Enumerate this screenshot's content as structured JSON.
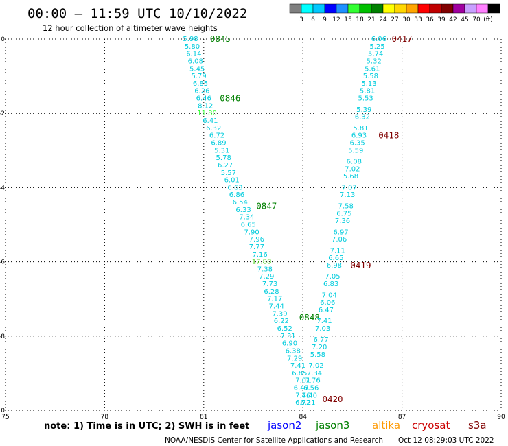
{
  "header": {
    "title": "00:00 – 11:59 UTC 10/10/2022",
    "subtitle": "12 hour collection of altimeter wave heights"
  },
  "colorbar": {
    "colors": [
      "#7f7f7f",
      "#00ffff",
      "#00c8ff",
      "#0000ff",
      "#1e90ff",
      "#33ff33",
      "#00c000",
      "#008000",
      "#ffff00",
      "#ffd700",
      "#ffa500",
      "#ff0000",
      "#c00000",
      "#800000",
      "#a000a0",
      "#c8a0ff",
      "#ff80ff",
      "#000000"
    ],
    "labels": [
      "3",
      "6",
      "9",
      "12",
      "15",
      "18",
      "21",
      "24",
      "27",
      "30",
      "33",
      "36",
      "39",
      "42",
      "45",
      "70",
      "(ft)"
    ]
  },
  "footer": {
    "note": "note: 1) Time is in UTC; 2) SWH is in feet",
    "sats": [
      {
        "name": "jason2",
        "color": "#0000ff"
      },
      {
        "name": "jason3",
        "color": "#008000"
      },
      {
        "name": "altika",
        "color": "#ff9900"
      },
      {
        "name": "cryosat",
        "color": "#cc0000"
      },
      {
        "name": "s3a",
        "color": "#800000"
      }
    ],
    "credit": "NOAA/NESDIS Center for Satellite Applications and Research",
    "timestamp": "Oct 12 08:29:03 UTC 2022"
  },
  "chart_data": {
    "type": "scatter",
    "xlim": [
      75,
      90
    ],
    "ylim": [
      -10,
      0
    ],
    "x_ticks": [
      75,
      78,
      81,
      84,
      87,
      90
    ],
    "y_ticks": [
      0,
      -2,
      -4,
      -6,
      -8,
      -10
    ],
    "grid": true,
    "series": [
      {
        "name": "jason3",
        "color": "#008000",
        "time_labels": [
          {
            "x": 81.5,
            "y": 0.0,
            "text": "0845"
          },
          {
            "x": 81.8,
            "y": -1.6,
            "text": "0846"
          },
          {
            "x": 82.9,
            "y": -4.5,
            "text": "0847"
          },
          {
            "x": 84.2,
            "y": -7.5,
            "text": "0848"
          }
        ],
        "points": [
          {
            "x": 80.6,
            "y": 0.0,
            "v": "5.98"
          },
          {
            "x": 80.65,
            "y": -0.2,
            "v": "5.80"
          },
          {
            "x": 80.7,
            "y": -0.4,
            "v": "6.14"
          },
          {
            "x": 80.75,
            "y": -0.6,
            "v": "6.08"
          },
          {
            "x": 80.8,
            "y": -0.8,
            "v": "5.45"
          },
          {
            "x": 80.85,
            "y": -1.0,
            "v": "5.79"
          },
          {
            "x": 80.9,
            "y": -1.2,
            "v": "6.85"
          },
          {
            "x": 80.95,
            "y": -1.4,
            "v": "6.26"
          },
          {
            "x": 81.0,
            "y": -1.6,
            "v": "6.46"
          },
          {
            "x": 81.05,
            "y": -1.8,
            "v": "8.12"
          },
          {
            "x": 81.1,
            "y": -2.0,
            "v": "11.80",
            "c": "#33ff33"
          },
          {
            "x": 81.2,
            "y": -2.2,
            "v": "6.41"
          },
          {
            "x": 81.3,
            "y": -2.4,
            "v": "6.32"
          },
          {
            "x": 81.4,
            "y": -2.6,
            "v": "6.72"
          },
          {
            "x": 81.45,
            "y": -2.8,
            "v": "6.89"
          },
          {
            "x": 81.55,
            "y": -3.0,
            "v": "5.31"
          },
          {
            "x": 81.6,
            "y": -3.2,
            "v": "5.78"
          },
          {
            "x": 81.65,
            "y": -3.4,
            "v": "6.27"
          },
          {
            "x": 81.75,
            "y": -3.6,
            "v": "5.57"
          },
          {
            "x": 81.85,
            "y": -3.8,
            "v": "6.01"
          },
          {
            "x": 81.95,
            "y": -4.0,
            "v": "6.63"
          },
          {
            "x": 82.0,
            "y": -4.2,
            "v": "6.86"
          },
          {
            "x": 82.1,
            "y": -4.4,
            "v": "6.54"
          },
          {
            "x": 82.2,
            "y": -4.6,
            "v": "6.33"
          },
          {
            "x": 82.3,
            "y": -4.8,
            "v": "7.34"
          },
          {
            "x": 82.35,
            "y": -5.0,
            "v": "6.65"
          },
          {
            "x": 82.45,
            "y": -5.2,
            "v": "7.90"
          },
          {
            "x": 82.6,
            "y": -5.4,
            "v": "7.96"
          },
          {
            "x": 82.6,
            "y": -5.6,
            "v": "7.77"
          },
          {
            "x": 82.7,
            "y": -5.8,
            "v": "7.16"
          },
          {
            "x": 82.75,
            "y": -6.0,
            "v": "17.88",
            "c": "#33cc00"
          },
          {
            "x": 82.85,
            "y": -6.2,
            "v": "7.38"
          },
          {
            "x": 82.9,
            "y": -6.4,
            "v": "7.29"
          },
          {
            "x": 83.0,
            "y": -6.6,
            "v": "7.73"
          },
          {
            "x": 83.05,
            "y": -6.8,
            "v": "6.28"
          },
          {
            "x": 83.15,
            "y": -7.0,
            "v": "7.17"
          },
          {
            "x": 83.2,
            "y": -7.2,
            "v": "7.44"
          },
          {
            "x": 83.3,
            "y": -7.4,
            "v": "7.39"
          },
          {
            "x": 83.35,
            "y": -7.6,
            "v": "6.22"
          },
          {
            "x": 83.45,
            "y": -7.8,
            "v": "6.52"
          },
          {
            "x": 83.55,
            "y": -8.0,
            "v": "7.31"
          },
          {
            "x": 83.6,
            "y": -8.2,
            "v": "6.90"
          },
          {
            "x": 83.7,
            "y": -8.4,
            "v": "6.38"
          },
          {
            "x": 83.75,
            "y": -8.6,
            "v": "7.29"
          },
          {
            "x": 83.85,
            "y": -8.8,
            "v": "7.41"
          },
          {
            "x": 83.9,
            "y": -9.0,
            "v": "6.85"
          },
          {
            "x": 84.0,
            "y": -9.2,
            "v": "7.01"
          },
          {
            "x": 83.95,
            "y": -9.4,
            "v": "6.47"
          },
          {
            "x": 84.0,
            "y": -9.6,
            "v": "7.46"
          },
          {
            "x": 84.0,
            "y": -9.8,
            "v": "6.72"
          }
        ]
      },
      {
        "name": "s3a",
        "color": "#800000",
        "time_labels": [
          {
            "x": 87.0,
            "y": 0.0,
            "text": "0417"
          },
          {
            "x": 86.6,
            "y": -2.6,
            "text": "0418"
          },
          {
            "x": 85.75,
            "y": -6.1,
            "text": "0419"
          },
          {
            "x": 84.9,
            "y": -9.7,
            "text": "0420"
          }
        ],
        "points": [
          {
            "x": 86.3,
            "y": 0.0,
            "v": "6.06"
          },
          {
            "x": 86.25,
            "y": -0.2,
            "v": "5.25"
          },
          {
            "x": 86.2,
            "y": -0.4,
            "v": "5.74"
          },
          {
            "x": 86.15,
            "y": -0.6,
            "v": "5.32"
          },
          {
            "x": 86.1,
            "y": -0.8,
            "v": "5.61"
          },
          {
            "x": 86.05,
            "y": -1.0,
            "v": "5.58"
          },
          {
            "x": 86.0,
            "y": -1.2,
            "v": "5.13"
          },
          {
            "x": 85.95,
            "y": -1.4,
            "v": "5.81"
          },
          {
            "x": 85.9,
            "y": -1.6,
            "v": "5.53"
          },
          {
            "x": 85.85,
            "y": -1.9,
            "v": "5.39"
          },
          {
            "x": 85.8,
            "y": -2.1,
            "v": "6.32"
          },
          {
            "x": 85.75,
            "y": -2.4,
            "v": "5.81"
          },
          {
            "x": 85.7,
            "y": -2.6,
            "v": "6.93"
          },
          {
            "x": 85.65,
            "y": -2.8,
            "v": "6.35"
          },
          {
            "x": 85.6,
            "y": -3.0,
            "v": "5.59"
          },
          {
            "x": 85.55,
            "y": -3.3,
            "v": "6.08"
          },
          {
            "x": 85.5,
            "y": -3.5,
            "v": "7.02"
          },
          {
            "x": 85.45,
            "y": -3.7,
            "v": "5.68"
          },
          {
            "x": 85.4,
            "y": -4.0,
            "v": "7.07"
          },
          {
            "x": 85.35,
            "y": -4.2,
            "v": "7.13"
          },
          {
            "x": 85.3,
            "y": -4.5,
            "v": "7.58"
          },
          {
            "x": 85.25,
            "y": -4.7,
            "v": "6.75"
          },
          {
            "x": 85.2,
            "y": -4.9,
            "v": "7.36"
          },
          {
            "x": 85.15,
            "y": -5.2,
            "v": "6.97"
          },
          {
            "x": 85.1,
            "y": -5.4,
            "v": "7.06"
          },
          {
            "x": 85.05,
            "y": -5.7,
            "v": "7.11"
          },
          {
            "x": 85.0,
            "y": -5.9,
            "v": "6.65"
          },
          {
            "x": 84.95,
            "y": -6.1,
            "v": "6.98"
          },
          {
            "x": 84.9,
            "y": -6.4,
            "v": "7.05"
          },
          {
            "x": 84.85,
            "y": -6.6,
            "v": "6.83"
          },
          {
            "x": 84.8,
            "y": -6.9,
            "v": "7.04"
          },
          {
            "x": 84.75,
            "y": -7.1,
            "v": "6.06"
          },
          {
            "x": 84.7,
            "y": -7.3,
            "v": "6.47"
          },
          {
            "x": 84.65,
            "y": -7.6,
            "v": "7.41"
          },
          {
            "x": 84.6,
            "y": -7.8,
            "v": "7.03"
          },
          {
            "x": 84.55,
            "y": -8.1,
            "v": "6.77"
          },
          {
            "x": 84.5,
            "y": -8.3,
            "v": "7.20"
          },
          {
            "x": 84.45,
            "y": -8.5,
            "v": "5.58"
          },
          {
            "x": 84.4,
            "y": -8.8,
            "v": "7.02"
          },
          {
            "x": 84.35,
            "y": -9.0,
            "v": "7.34"
          },
          {
            "x": 84.3,
            "y": -9.2,
            "v": "7.76"
          },
          {
            "x": 84.25,
            "y": -9.4,
            "v": "6.56"
          },
          {
            "x": 84.2,
            "y": -9.6,
            "v": "7.40"
          },
          {
            "x": 84.15,
            "y": -9.8,
            "v": "6.21"
          }
        ]
      }
    ]
  }
}
